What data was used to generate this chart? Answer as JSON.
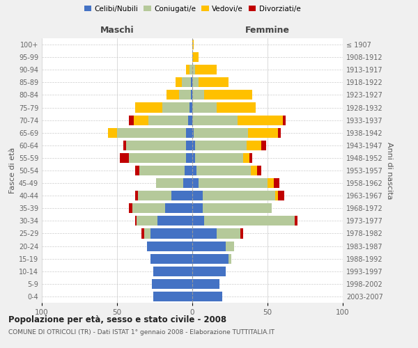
{
  "age_groups": [
    "0-4",
    "5-9",
    "10-14",
    "15-19",
    "20-24",
    "25-29",
    "30-34",
    "35-39",
    "40-44",
    "45-49",
    "50-54",
    "55-59",
    "60-64",
    "65-69",
    "70-74",
    "75-79",
    "80-84",
    "85-89",
    "90-94",
    "95-99",
    "100+"
  ],
  "birth_years": [
    "2003-2007",
    "1998-2002",
    "1993-1997",
    "1988-1992",
    "1983-1987",
    "1978-1982",
    "1973-1977",
    "1968-1972",
    "1963-1967",
    "1958-1962",
    "1953-1957",
    "1948-1952",
    "1943-1947",
    "1938-1942",
    "1933-1937",
    "1928-1932",
    "1923-1927",
    "1918-1922",
    "1913-1917",
    "1908-1912",
    "≤ 1907"
  ],
  "colors": {
    "celibi": "#4472c4",
    "coniugati": "#b5c99a",
    "vedovi": "#ffc000",
    "divorziati": "#c00000"
  },
  "maschi": {
    "celibi": [
      26,
      27,
      26,
      28,
      30,
      28,
      23,
      18,
      14,
      6,
      5,
      4,
      4,
      4,
      3,
      2,
      1,
      1,
      0,
      0,
      0
    ],
    "coniugati": [
      0,
      0,
      0,
      0,
      0,
      4,
      14,
      22,
      22,
      18,
      30,
      38,
      40,
      46,
      26,
      18,
      8,
      6,
      2,
      0,
      0
    ],
    "vedovi": [
      0,
      0,
      0,
      0,
      0,
      0,
      0,
      0,
      0,
      0,
      0,
      0,
      0,
      6,
      10,
      18,
      8,
      4,
      2,
      0,
      0
    ],
    "divorziati": [
      0,
      0,
      0,
      0,
      0,
      2,
      1,
      2,
      2,
      0,
      3,
      6,
      2,
      0,
      3,
      0,
      0,
      0,
      0,
      0,
      0
    ]
  },
  "femmine": {
    "celibi": [
      20,
      18,
      22,
      24,
      22,
      16,
      8,
      7,
      7,
      4,
      3,
      2,
      2,
      1,
      0,
      0,
      0,
      0,
      0,
      0,
      0
    ],
    "coniugati": [
      0,
      0,
      0,
      2,
      6,
      16,
      60,
      46,
      48,
      46,
      36,
      32,
      34,
      36,
      30,
      16,
      8,
      4,
      2,
      0,
      0
    ],
    "vedovi": [
      0,
      0,
      0,
      0,
      0,
      0,
      0,
      0,
      2,
      4,
      4,
      4,
      10,
      20,
      30,
      26,
      32,
      20,
      14,
      4,
      1
    ],
    "divorziati": [
      0,
      0,
      0,
      0,
      0,
      2,
      2,
      0,
      4,
      4,
      3,
      2,
      3,
      2,
      2,
      0,
      0,
      0,
      0,
      0,
      0
    ]
  },
  "xlim": 100,
  "title": "Popolazione per età, sesso e stato civile - 2008",
  "subtitle": "COMUNE DI OTRICOLI (TR) - Dati ISTAT 1° gennaio 2008 - Elaborazione TUTTITALIA.IT",
  "ylabel_left": "Fasce di età",
  "ylabel_right": "Anni di nascita",
  "xlabel_left": "Maschi",
  "xlabel_right": "Femmine",
  "bg_color": "#f0f0f0",
  "plot_bg": "#ffffff",
  "grid_color": "#cccccc"
}
